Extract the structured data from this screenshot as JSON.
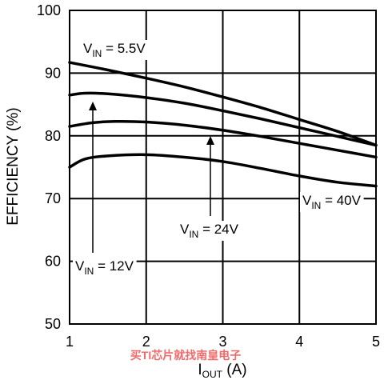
{
  "chart_data": {
    "type": "line",
    "xlabel_main": "I",
    "xlabel_sub": "OUT",
    "xlabel_unit": " (A)",
    "ylabel": "EFFICIENCY (%)",
    "xlim": [
      1,
      5
    ],
    "ylim": [
      50,
      100
    ],
    "x_ticks": [
      "1",
      "2",
      "3",
      "4",
      "5"
    ],
    "y_ticks": [
      "50",
      "60",
      "70",
      "80",
      "90",
      "100"
    ],
    "grid": true,
    "series": [
      {
        "name": "VIN = 5.5V",
        "label_prefix": "V",
        "label_sub": "IN",
        "label_value": " = 5.5V",
        "x": [
          1,
          1.5,
          2,
          2.5,
          3,
          3.5,
          4,
          4.5,
          5
        ],
        "y": [
          91.7,
          90.5,
          89.2,
          87.8,
          86.2,
          84.5,
          82.6,
          80.7,
          78.5
        ]
      },
      {
        "name": "VIN = 12V",
        "label_prefix": "V",
        "label_sub": "IN",
        "label_value": " = 12V",
        "x": [
          1,
          1.2,
          1.5,
          2,
          2.5,
          3,
          3.5,
          4,
          4.5,
          5
        ],
        "y": [
          86.5,
          86.8,
          86.7,
          86.1,
          85.2,
          84.0,
          82.7,
          81.3,
          79.9,
          78.5
        ]
      },
      {
        "name": "VIN = 24V",
        "label_prefix": "V",
        "label_sub": "IN",
        "label_value": " = 24V",
        "x": [
          1,
          1.3,
          1.6,
          2,
          2.5,
          3,
          3.5,
          4,
          4.5,
          5
        ],
        "y": [
          81.5,
          82.1,
          82.3,
          82.2,
          81.7,
          80.9,
          79.9,
          78.8,
          77.7,
          76.6
        ]
      },
      {
        "name": "VIN = 40V",
        "label_prefix": "V",
        "label_sub": "IN",
        "label_value": " = 40V",
        "x": [
          1,
          1.2,
          1.5,
          2,
          2.5,
          3,
          3.5,
          4,
          4.5,
          5
        ],
        "y": [
          75.0,
          76.3,
          76.8,
          77.0,
          76.6,
          75.9,
          74.8,
          73.6,
          72.6,
          72.0
        ]
      }
    ]
  },
  "watermark": "买TI芯片就找南皇电子"
}
